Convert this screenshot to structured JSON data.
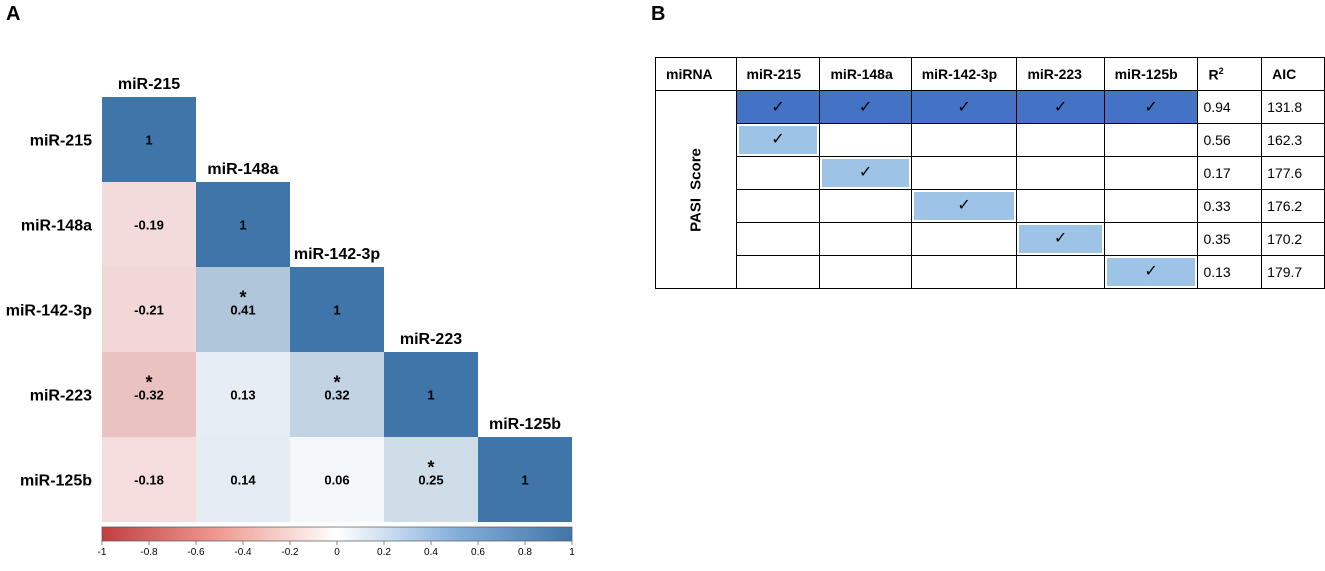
{
  "panels": {
    "a": "A",
    "b": "B"
  },
  "chart_data": [
    {
      "type": "heatmap",
      "title": "",
      "labels": [
        "miR-215",
        "miR-148a",
        "miR-142-3p",
        "miR-223",
        "miR-125b"
      ],
      "matrix": [
        [
          1,
          null,
          null,
          null,
          null
        ],
        [
          -0.19,
          1,
          null,
          null,
          null
        ],
        [
          -0.21,
          0.41,
          1,
          null,
          null
        ],
        [
          -0.32,
          0.13,
          0.32,
          1,
          null
        ],
        [
          -0.18,
          0.14,
          0.06,
          0.25,
          1
        ]
      ],
      "cell_text": [
        [
          "1",
          "",
          "",
          "",
          ""
        ],
        [
          "-0.19",
          "1",
          "",
          "",
          ""
        ],
        [
          "-0.21",
          "0.41",
          "1",
          "",
          ""
        ],
        [
          "-0.32",
          "0.13",
          "0.32",
          "1",
          ""
        ],
        [
          "-0.18",
          "0.14",
          "0.06",
          "0.25",
          "1"
        ]
      ],
      "significant": [
        [
          false,
          false,
          false,
          false,
          false
        ],
        [
          false,
          false,
          false,
          false,
          false
        ],
        [
          false,
          true,
          false,
          false,
          false
        ],
        [
          true,
          false,
          true,
          false,
          false
        ],
        [
          false,
          false,
          false,
          true,
          false
        ]
      ],
      "significance_marker": "*",
      "colorbar": {
        "range": [
          -1,
          1
        ],
        "ticks": [
          "-1",
          "-0.8",
          "-0.6",
          "-0.4",
          "-0.2",
          "0",
          "0.2",
          "0.4",
          "0.6",
          "0.8",
          "1"
        ],
        "low_color": "#c0403f",
        "mid_color": "#ffffff",
        "high_color": "#3f75a8"
      }
    },
    {
      "type": "table",
      "headers": [
        "miRNA",
        "miR-215",
        "miR-148a",
        "miR-142-3p",
        "miR-223",
        "miR-125b",
        "R²",
        "AIC"
      ],
      "row_group_label": "PASI Score",
      "check_mark": "✓",
      "rows": [
        {
          "checks": [
            true,
            true,
            true,
            true,
            true
          ],
          "r2": "0.94",
          "aic": "131.8",
          "style": "full"
        },
        {
          "checks": [
            true,
            false,
            false,
            false,
            false
          ],
          "r2": "0.56",
          "aic": "162.3",
          "style": "single"
        },
        {
          "checks": [
            false,
            true,
            false,
            false,
            false
          ],
          "r2": "0.17",
          "aic": "177.6",
          "style": "single"
        },
        {
          "checks": [
            false,
            false,
            true,
            false,
            false
          ],
          "r2": "0.33",
          "aic": "176.2",
          "style": "single"
        },
        {
          "checks": [
            false,
            false,
            false,
            true,
            false
          ],
          "r2": "0.35",
          "aic": "170.2",
          "style": "single"
        },
        {
          "checks": [
            false,
            false,
            false,
            false,
            true
          ],
          "r2": "0.13",
          "aic": "179.7",
          "style": "single"
        }
      ],
      "colors": {
        "full": "#4472c4",
        "single": "#9dc3e6"
      }
    }
  ]
}
